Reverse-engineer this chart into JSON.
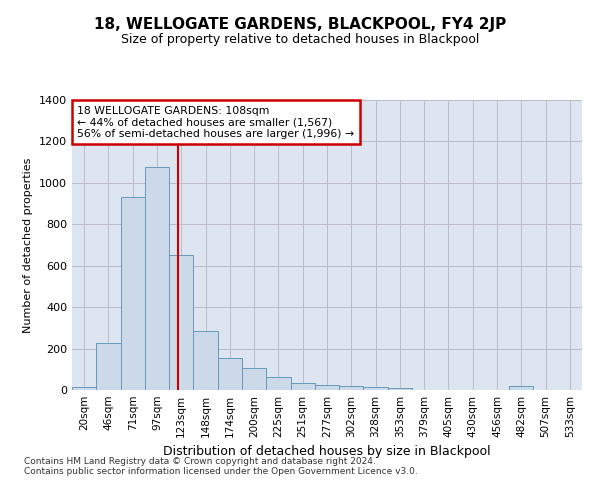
{
  "title": "18, WELLOGATE GARDENS, BLACKPOOL, FY4 2JP",
  "subtitle": "Size of property relative to detached houses in Blackpool",
  "xlabel": "Distribution of detached houses by size in Blackpool",
  "ylabel": "Number of detached properties",
  "footnote1": "Contains HM Land Registry data © Crown copyright and database right 2024.",
  "footnote2": "Contains public sector information licensed under the Open Government Licence v3.0.",
  "annotation_line1": "18 WELLOGATE GARDENS: 108sqm",
  "annotation_line2": "← 44% of detached houses are smaller (1,567)",
  "annotation_line3": "56% of semi-detached houses are larger (1,996) →",
  "bar_color": "#ccd9e8",
  "bar_edge_color": "#6699bb",
  "grid_color": "#bbbbcc",
  "bg_color": "#dce5f0",
  "red_line_color": "#cc0000",
  "categories": [
    "20sqm",
    "46sqm",
    "71sqm",
    "97sqm",
    "123sqm",
    "148sqm",
    "174sqm",
    "200sqm",
    "225sqm",
    "251sqm",
    "277sqm",
    "302sqm",
    "328sqm",
    "353sqm",
    "379sqm",
    "405sqm",
    "430sqm",
    "456sqm",
    "482sqm",
    "507sqm",
    "533sqm"
  ],
  "values": [
    15,
    225,
    930,
    1075,
    650,
    285,
    155,
    105,
    65,
    35,
    25,
    18,
    15,
    12,
    0,
    0,
    0,
    0,
    20,
    0,
    0
  ],
  "red_line_x": 3.85,
  "ylim": [
    0,
    1400
  ],
  "yticks": [
    0,
    200,
    400,
    600,
    800,
    1000,
    1200,
    1400
  ],
  "title_fontsize": 11,
  "subtitle_fontsize": 9,
  "ylabel_fontsize": 8,
  "xlabel_fontsize": 9,
  "tick_fontsize": 8,
  "xtick_fontsize": 7.5,
  "footnote_fontsize": 6.5
}
